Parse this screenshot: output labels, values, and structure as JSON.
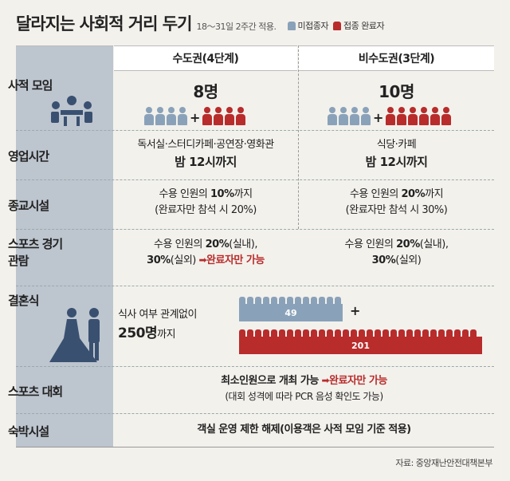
{
  "header": {
    "title": "달라지는 사회적 거리 두기",
    "subtitle": "18～31일 2주간 적용.",
    "legend_unvaccinated": "미접종자",
    "legend_vaccinated": "접종 완료자"
  },
  "columns": {
    "metro": "수도권(4단계)",
    "nonmetro": "비수도권(3단계)"
  },
  "rows": {
    "gathering": {
      "label": "사적 모임",
      "metro_count": "8명",
      "nonmetro_count": "10명"
    },
    "hours": {
      "label": "영업시간",
      "metro_line1": "독서실·스터디카페·공연장·영화관",
      "metro_line2": "밤 12시까지",
      "nonmetro_line1": "식당·카페",
      "nonmetro_line2": "밤 12시까지"
    },
    "religion": {
      "label": "종교시설",
      "metro_line1_pre": "수용 인원의 ",
      "metro_line1_bold": "10%",
      "metro_line1_post": "까지",
      "metro_line2": "(완료자만 참석 시 20%)",
      "nonmetro_line1_pre": "수용 인원의 ",
      "nonmetro_line1_bold": "20%",
      "nonmetro_line1_post": "까지",
      "nonmetro_line2": "(완료자만 참석 시 30%)"
    },
    "sports_view": {
      "label_line1": "스포츠 경기",
      "label_line2": "관람",
      "metro_line1_pre": "수용 인원의 ",
      "metro_line1_bold": "20%",
      "metro_line1_post": "(실내),",
      "metro_line2_bold": "30%",
      "metro_line2_post": "(실외) ",
      "metro_note": "완료자만 가능",
      "nonmetro_line1_pre": "수용 인원의 ",
      "nonmetro_line1_bold": "20%",
      "nonmetro_line1_post": "(실내),",
      "nonmetro_line2_bold": "30%",
      "nonmetro_line2_post": "(실외)"
    },
    "wedding": {
      "label": "결혼식",
      "line1": "식사 여부 관계없이",
      "line2_bold": "250명",
      "line2_post": "까지",
      "unvaccinated": "49",
      "vaccinated": "201"
    },
    "sports_event": {
      "label": "스포츠 대회",
      "line1_bold": "최소인원으로 개최 가능",
      "line1_note": "완료자만 가능",
      "line2": "(대회 성격에 따라 PCR 음성 확인도 가능)"
    },
    "lodging": {
      "label": "숙박시설",
      "line1": "객실 운영 제한 해제(이용객은 사적 모임 기준 적용)"
    }
  },
  "source": "자료: 중앙재난안전대책본부",
  "colors": {
    "blue": "#8aa2b9",
    "red": "#b82c2c"
  }
}
